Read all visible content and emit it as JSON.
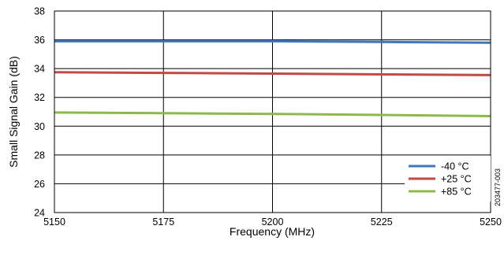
{
  "chart_data": {
    "type": "line",
    "xlabel": "Frequency (MHz)",
    "ylabel": "Small Signal Gain (dB)",
    "xlim": [
      5150,
      5250
    ],
    "ylim": [
      24,
      38
    ],
    "x_ticks": [
      "5150",
      "5175",
      "5200",
      "5225",
      "5250"
    ],
    "y_ticks": [
      "24",
      "26",
      "28",
      "30",
      "32",
      "34",
      "36",
      "38"
    ],
    "grid": true,
    "legend_position": "bottom-right",
    "series": [
      {
        "name": "-40 °C",
        "color": "#3d79b8",
        "x": [
          5150,
          5175,
          5200,
          5225,
          5250
        ],
        "y": [
          35.9,
          35.9,
          35.9,
          35.85,
          35.8
        ]
      },
      {
        "name": "+25 °C",
        "color": "#c04a45",
        "x": [
          5150,
          5175,
          5200,
          5225,
          5250
        ],
        "y": [
          33.75,
          33.7,
          33.65,
          33.6,
          33.55
        ]
      },
      {
        "name": "+85 °C",
        "color": "#8db94c",
        "x": [
          5150,
          5175,
          5200,
          5225,
          5250
        ],
        "y": [
          30.95,
          30.9,
          30.85,
          30.78,
          30.7
        ]
      }
    ],
    "figure_id": "203477-003"
  }
}
